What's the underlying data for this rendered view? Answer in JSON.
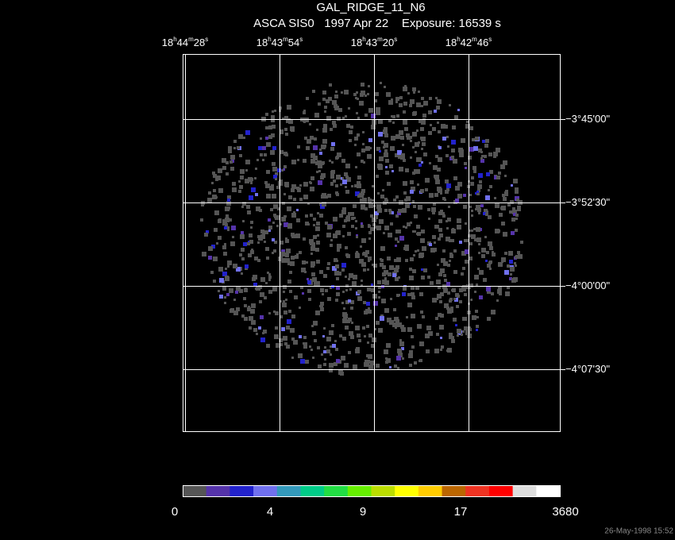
{
  "title": "GAL_RIDGE_11_N6",
  "subtitle": "ASCA SIS0   1997 Apr 22    Exposure: 16539 s",
  "ra_labels": [
    [
      "18",
      "h",
      "44",
      "m",
      "28",
      "s"
    ],
    [
      "18",
      "h",
      "43",
      "m",
      "54",
      "s"
    ],
    [
      "18",
      "h",
      "43",
      "m",
      "20",
      "s"
    ],
    [
      "18",
      "h",
      "42",
      "m",
      "46",
      "s"
    ]
  ],
  "dec_labels": [
    "−3°45'00\"",
    "−3°52'30\"",
    "−4°00'00\"",
    "−4°07'30\""
  ],
  "colorbar": {
    "colors": [
      "#555555",
      "#5533aa",
      "#2222cc",
      "#7070ee",
      "#3399bb",
      "#00cc88",
      "#22dd44",
      "#66ee00",
      "#bbdd00",
      "#ffff00",
      "#ffcc00",
      "#bb6600",
      "#ee3322",
      "#ff0000",
      "#dddddd",
      "#ffffff"
    ],
    "labels": [
      "0",
      "4",
      "9",
      "17",
      "3680"
    ]
  },
  "footer": "26-May-1998 15:52"
}
